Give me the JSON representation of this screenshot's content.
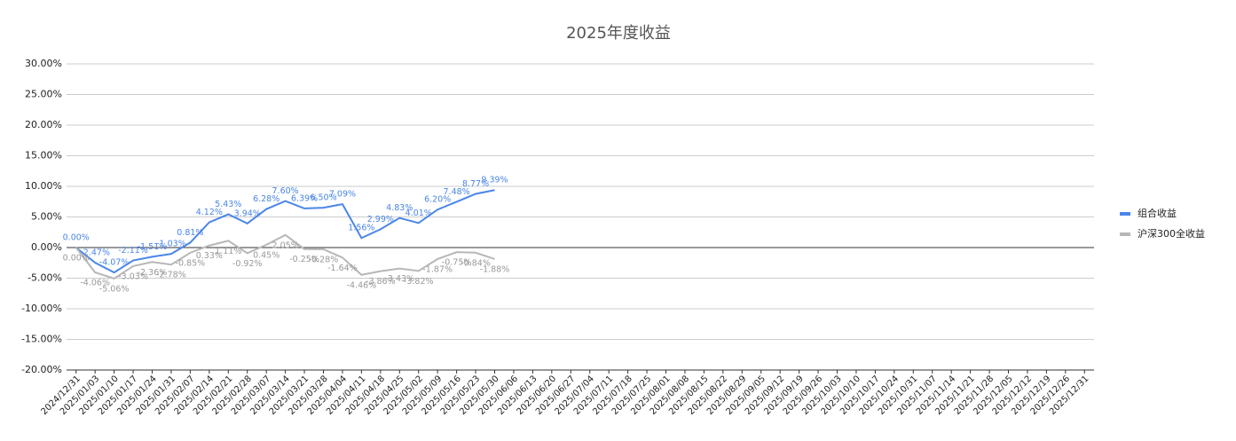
{
  "chart_data": {
    "type": "line",
    "title": "2025年度收益",
    "categories": [
      "2024/12/31",
      "2025/01/03",
      "2025/01/10",
      "2025/01/17",
      "2025/01/24",
      "2025/01/31",
      "2025/02/07",
      "2025/02/14",
      "2025/02/21",
      "2025/02/28",
      "2025/03/07",
      "2025/03/14",
      "2025/03/21",
      "2025/03/28",
      "2025/04/04",
      "2025/04/11",
      "2025/04/18",
      "2025/04/25",
      "2025/05/02",
      "2025/05/09",
      "2025/05/16",
      "2025/05/23",
      "2025/05/30",
      "2025/06/06",
      "2025/06/13",
      "2025/06/20",
      "2025/06/27",
      "2025/07/04",
      "2025/07/11",
      "2025/07/18",
      "2025/07/25",
      "2025/08/01",
      "2025/08/08",
      "2025/08/15",
      "2025/08/22",
      "2025/08/29",
      "2025/09/05",
      "2025/09/12",
      "2025/09/19",
      "2025/09/26",
      "2025/10/03",
      "2025/10/10",
      "2025/10/17",
      "2025/10/24",
      "2025/10/31",
      "2025/11/07",
      "2025/11/14",
      "2025/11/21",
      "2025/11/28",
      "2025/12/05",
      "2025/12/12",
      "2025/12/19",
      "2025/12/26",
      "2025/12/31"
    ],
    "series": [
      {
        "name": "组合收益",
        "color": "#4a86e8",
        "values": [
          0.0,
          -2.47,
          -4.07,
          -2.11,
          -1.51,
          -1.03,
          0.81,
          4.12,
          5.43,
          3.94,
          6.28,
          7.6,
          6.39,
          6.5,
          7.09,
          1.56,
          2.99,
          4.83,
          4.01,
          6.2,
          7.48,
          8.77,
          9.39,
          null,
          null,
          null,
          null,
          null,
          null,
          null,
          null,
          null,
          null,
          null,
          null,
          null,
          null,
          null,
          null,
          null,
          null,
          null,
          null,
          null,
          null,
          null,
          null,
          null,
          null,
          null,
          null,
          null,
          null,
          null
        ],
        "value_labels": [
          "0.00%",
          "-2.47%",
          "-4.07%",
          "-2.11%",
          "-1.51%",
          "-1.03%",
          "0.81%",
          "4.12%",
          "5.43%",
          "3.94%",
          "6.28%",
          "7.60%",
          "6.39%",
          "6.50%",
          "7.09%",
          "1.56%",
          "2.99%",
          "4.83%",
          "4.01%",
          "6.20%",
          "7.48%",
          "8.77%",
          "9.39%",
          null,
          null,
          null,
          null,
          null,
          null,
          null,
          null,
          null,
          null,
          null,
          null,
          null,
          null,
          null,
          null,
          null,
          null,
          null,
          null,
          null,
          null,
          null,
          null,
          null,
          null,
          null,
          null,
          null,
          null,
          null
        ]
      },
      {
        "name": "沪深300全收益",
        "color": "#b7b7b7",
        "values": [
          0.0,
          -4.06,
          -5.06,
          -3.03,
          -2.36,
          -2.78,
          -0.85,
          0.33,
          1.11,
          -0.92,
          0.45,
          2.05,
          -0.25,
          -0.28,
          -1.64,
          -4.46,
          -3.86,
          -3.43,
          -3.82,
          -1.87,
          -0.75,
          -0.84,
          -1.88,
          null,
          null,
          null,
          null,
          null,
          null,
          null,
          null,
          null,
          null,
          null,
          null,
          null,
          null,
          null,
          null,
          null,
          null,
          null,
          null,
          null,
          null,
          null,
          null,
          null,
          null,
          null,
          null,
          null,
          null,
          null
        ],
        "value_labels": [
          "0.00%",
          "-4.06%",
          "-5.06%",
          "-3.03%",
          "-2.36%",
          "-2.78%",
          "-0.85%",
          "0.33%",
          "1.11%",
          "-0.92%",
          "0.45%",
          "2.05%",
          "-0.25%",
          "-0.28%",
          "-1.64%",
          "-4.46%",
          "-3.86%",
          "-3.43%",
          "-3.82%",
          "-1.87%",
          "-0.75%",
          "-0.84%",
          "-1.88%",
          null,
          null,
          null,
          null,
          null,
          null,
          null,
          null,
          null,
          null,
          null,
          null,
          null,
          null,
          null,
          null,
          null,
          null,
          null,
          null,
          null,
          null,
          null,
          null,
          null,
          null,
          null,
          null,
          null,
          null,
          null
        ]
      }
    ],
    "ylim": [
      -20,
      30
    ],
    "yticks": [
      {
        "value": -20,
        "label": "-20.00%"
      },
      {
        "value": -15,
        "label": "-15.00%"
      },
      {
        "value": -10,
        "label": "-10.00%"
      },
      {
        "value": -5,
        "label": "-5.00%"
      },
      {
        "value": 0,
        "label": "0.00%"
      },
      {
        "value": 5,
        "label": "5.00%"
      },
      {
        "value": 10,
        "label": "10.00%"
      },
      {
        "value": 15,
        "label": "15.00%"
      },
      {
        "value": 20,
        "label": "20.00%"
      },
      {
        "value": 25,
        "label": "25.00%"
      },
      {
        "value": 30,
        "label": "30.00%"
      }
    ],
    "grid": true,
    "legend": "right"
  }
}
